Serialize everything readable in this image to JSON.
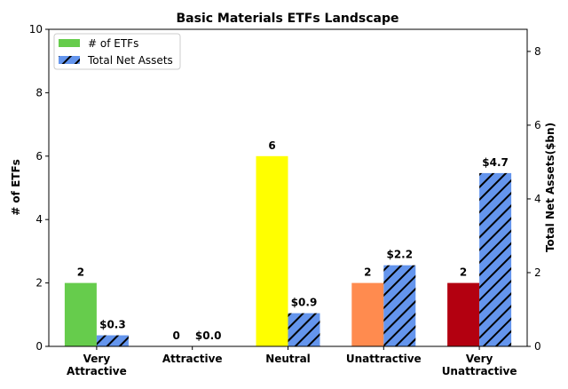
{
  "chart_data": {
    "type": "bar",
    "title": "Basic Materials ETFs Landscape",
    "ylabel": "# of ETFs",
    "y2label": "Total Net Assets($bn)",
    "categories": [
      [
        "Very",
        "Attractive"
      ],
      [
        "Attractive"
      ],
      [
        "Neutral"
      ],
      [
        "Unattractive"
      ],
      [
        "Very",
        "Unattractive"
      ]
    ],
    "ylim": [
      0,
      10
    ],
    "y2lim": [
      0,
      8.6
    ],
    "yticks": [
      "0",
      "2",
      "4",
      "6",
      "8",
      "10"
    ],
    "y2ticks": [
      "0",
      "2",
      "4",
      "6",
      "8"
    ],
    "legend_position": "upper-left",
    "series": [
      {
        "name": "# of ETFs",
        "axis": "left",
        "values": [
          2,
          0,
          6,
          2,
          2
        ],
        "labels": [
          "2",
          "0",
          "6",
          "2",
          "2"
        ],
        "colors": [
          "#66cc4c",
          "#66cc4c",
          "#ffff00",
          "#ff8b4f",
          "#b30010"
        ],
        "legend_color": "#66cc4c"
      },
      {
        "name": "Total Net Assets",
        "axis": "right",
        "values": [
          0.3,
          0.0,
          0.9,
          2.2,
          4.7
        ],
        "labels": [
          "$0.3",
          "$0.0",
          "$0.9",
          "$2.2",
          "$4.7"
        ],
        "color": "#6495ed",
        "hatch": "diagonal"
      }
    ]
  }
}
